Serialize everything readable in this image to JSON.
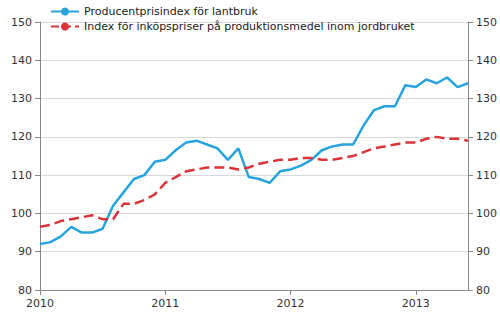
{
  "chart_data": {
    "type": "line",
    "categories": [
      "2010",
      null,
      null,
      null,
      null,
      null,
      null,
      null,
      null,
      null,
      null,
      null,
      "2011",
      null,
      null,
      null,
      null,
      null,
      null,
      null,
      null,
      null,
      null,
      null,
      "2012",
      null,
      null,
      null,
      null,
      null,
      null,
      null,
      null,
      null,
      null,
      null,
      "2013",
      null,
      null,
      null,
      null,
      null
    ],
    "series": [
      {
        "name": "Producentprisindex för lantbruk",
        "color": "#27a3dd",
        "line_style": "solid",
        "values": [
          92,
          92.5,
          94,
          96.5,
          95,
          95,
          96,
          102,
          105.5,
          109,
          110,
          113.5,
          114,
          116.5,
          118.5,
          119,
          118,
          117,
          114,
          117,
          109.5,
          109,
          108,
          111,
          111.5,
          112.5,
          114,
          116.5,
          117.5,
          118,
          118,
          123,
          127,
          128,
          128,
          133.5,
          133,
          135,
          134,
          135.5,
          133,
          134
        ]
      },
      {
        "name": "Index för inköpspriser på produktionsmedel inom jordbruket",
        "color": "#d9343a",
        "line_style": "dashed",
        "values": [
          96.5,
          97,
          98,
          98.5,
          99,
          99.5,
          98.5,
          98.5,
          102.5,
          102.5,
          103.5,
          105,
          108,
          109.5,
          111,
          111.5,
          112,
          112,
          112,
          111.5,
          112,
          113,
          113.5,
          114,
          114,
          114.5,
          114.5,
          114,
          114,
          114.5,
          115,
          116,
          117,
          117.5,
          118,
          118.5,
          118.5,
          119.5,
          120,
          119.5,
          119.5,
          119
        ]
      }
    ],
    "ylim": [
      80,
      150
    ],
    "yticks": [
      80,
      90,
      100,
      110,
      120,
      130,
      140,
      150
    ],
    "y2lim": [
      80,
      150
    ],
    "y2ticks": [
      80,
      90,
      100,
      110,
      120,
      130,
      140,
      150
    ],
    "grid": true,
    "legend": "top-left"
  }
}
